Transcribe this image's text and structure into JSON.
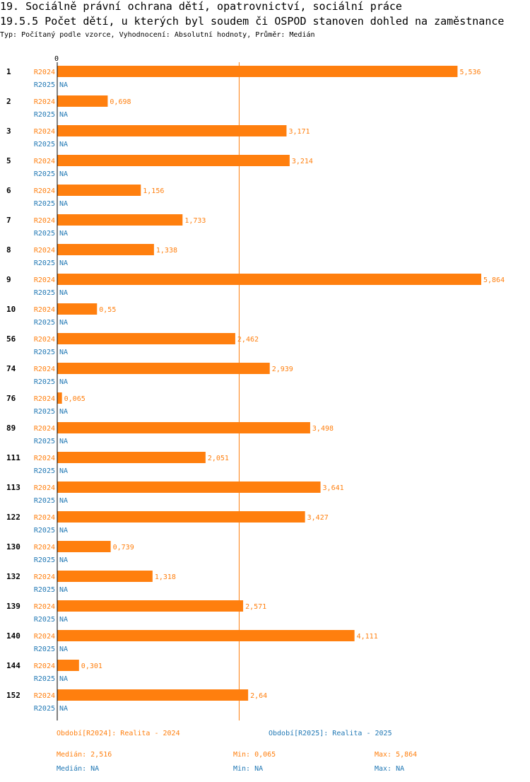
{
  "header": {
    "title1": "19. Sociálně právní ochrana dětí, opatrovnictví, sociální práce",
    "title2": "19.5.5 Počet dětí, u kterých byl soudem či OSPOD stanoven dohled na zaměstnance",
    "subtitle": "Typ: Počítaný podle vzorce, Vyhodnocení: Absolutní hodnoty, Průměr: Medián"
  },
  "colors": {
    "r2024": "#ff7f0e",
    "r2025": "#1f77b4",
    "text": "#000000"
  },
  "chart_data": {
    "type": "bar",
    "orientation": "horizontal",
    "title": "19.5.5 Počet dětí, u kterých byl soudem či OSPOD stanoven dohled na zaměstnance",
    "x_axis_zero_label": "0",
    "xlim": [
      0,
      5.864
    ],
    "median_line": 2.516,
    "categories": [
      "1",
      "2",
      "3",
      "5",
      "6",
      "7",
      "8",
      "9",
      "10",
      "56",
      "74",
      "76",
      "89",
      "111",
      "113",
      "122",
      "130",
      "132",
      "139",
      "140",
      "144",
      "152"
    ],
    "series": [
      {
        "name": "R2024",
        "values": [
          5.536,
          0.698,
          3.171,
          3.214,
          1.156,
          1.733,
          1.338,
          5.864,
          0.55,
          2.462,
          2.939,
          0.065,
          3.498,
          2.051,
          3.641,
          3.427,
          0.739,
          1.318,
          2.571,
          4.111,
          0.301,
          2.64
        ],
        "labels": [
          "5,536",
          "0,698",
          "3,171",
          "3,214",
          "1,156",
          "1,733",
          "1,338",
          "5,864",
          "0,55",
          "2,462",
          "2,939",
          "0,065",
          "3,498",
          "2,051",
          "3,641",
          "3,427",
          "0,739",
          "1,318",
          "2,571",
          "4,111",
          "0,301",
          "2,64"
        ]
      },
      {
        "name": "R2025",
        "values": [
          null,
          null,
          null,
          null,
          null,
          null,
          null,
          null,
          null,
          null,
          null,
          null,
          null,
          null,
          null,
          null,
          null,
          null,
          null,
          null,
          null,
          null
        ],
        "labels": [
          "NA",
          "NA",
          "NA",
          "NA",
          "NA",
          "NA",
          "NA",
          "NA",
          "NA",
          "NA",
          "NA",
          "NA",
          "NA",
          "NA",
          "NA",
          "NA",
          "NA",
          "NA",
          "NA",
          "NA",
          "NA",
          "NA"
        ]
      }
    ]
  },
  "legend": {
    "period_2024": "Období[R2024]: Realita - 2024",
    "period_2025": "Období[R2025]: Realita - 2025"
  },
  "stats": {
    "r2024": {
      "median": "Medián: 2,516",
      "min": "Min: 0,065",
      "max": "Max: 5,864"
    },
    "r2025": {
      "median": "Medián: NA",
      "min": "Min: NA",
      "max": "Max: NA"
    }
  }
}
